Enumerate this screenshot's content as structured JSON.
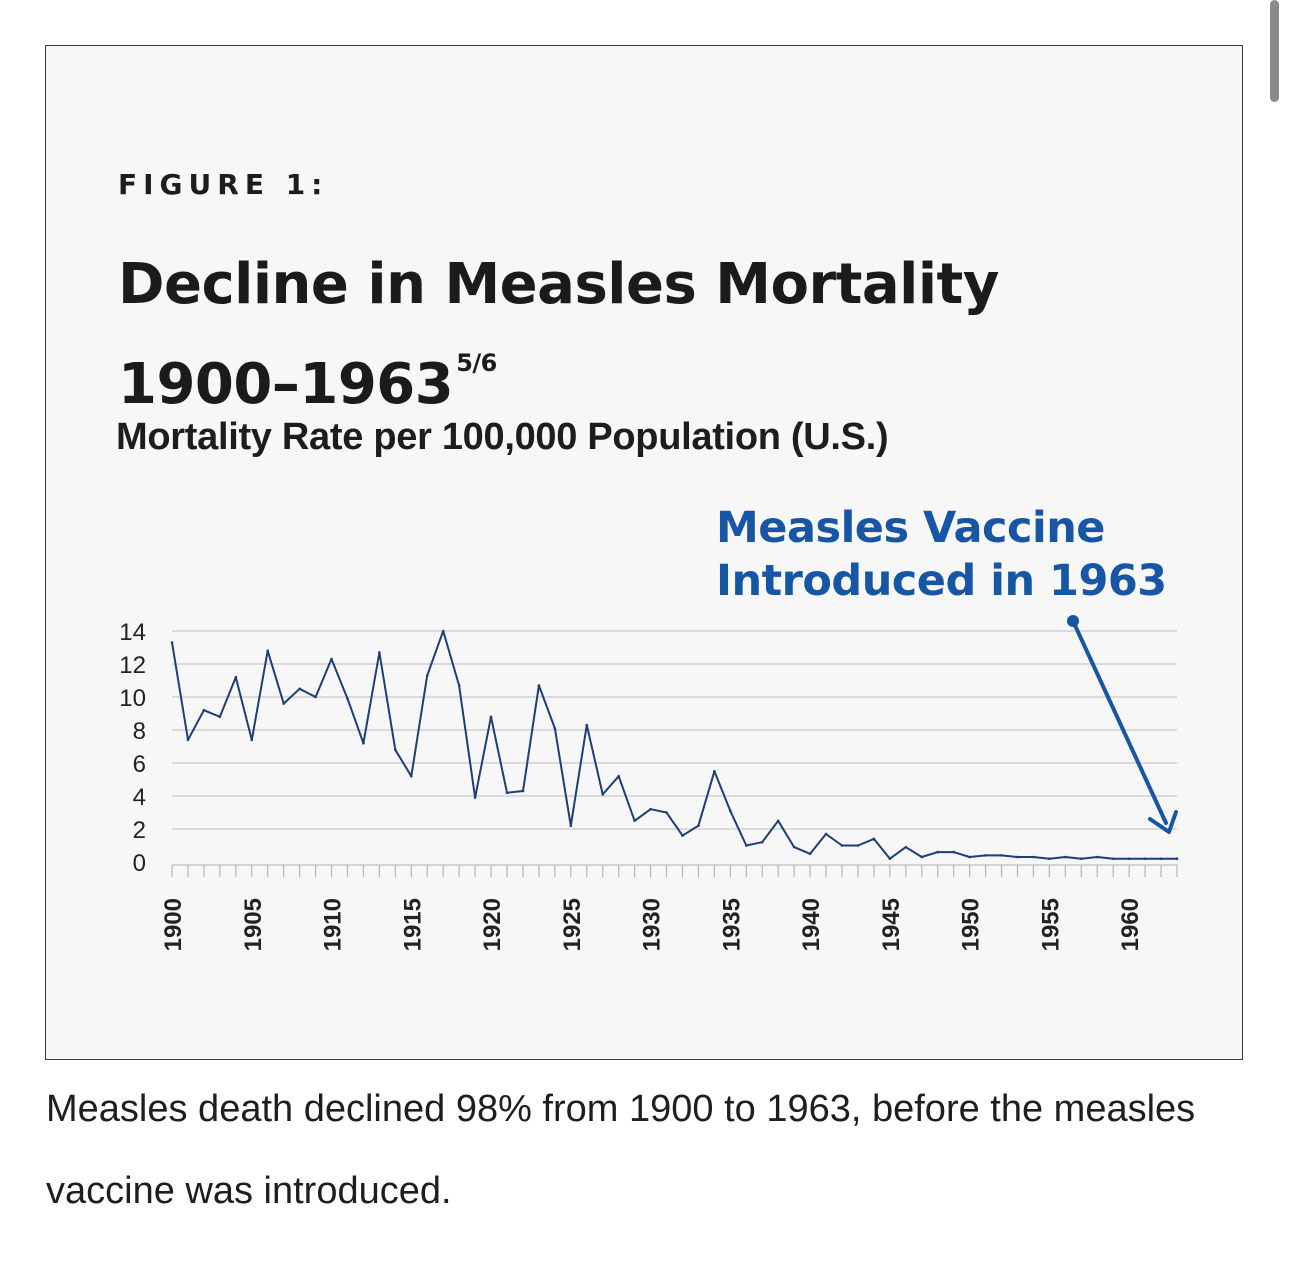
{
  "figure": {
    "label": "FIGURE 1:",
    "title_line1": "Decline in Measles Mortality",
    "title_line2": "1900–1963",
    "title_superscript": "5/6",
    "subtitle": "Mortality Rate per 100,000 Population (U.S.)",
    "annotation_line1": "Measles Vaccine",
    "annotation_line2": "Introduced in 1963"
  },
  "caption": "Measles death declined 98% from 1900 to 1963, before the measles vaccine was introduced.",
  "colors": {
    "series": "#1c3f78",
    "annotation": "#1656a4",
    "grid": "#c8c8c8",
    "background": "#f7f7f7"
  },
  "chart_data": {
    "type": "line",
    "title": "Decline in Measles Mortality 1900–1963",
    "subtitle": "Mortality Rate per 100,000 Population (U.S.)",
    "xlabel": "",
    "ylabel": "",
    "ylim": [
      0,
      14
    ],
    "yticks": [
      0,
      2,
      4,
      6,
      8,
      10,
      12,
      14
    ],
    "xlim": [
      1900,
      1963
    ],
    "xtick_labels": [
      "1900",
      "1905",
      "1910",
      "1915",
      "1920",
      "1925",
      "1930",
      "1935",
      "1940",
      "1945",
      "1950",
      "1955",
      "1960"
    ],
    "grid": true,
    "x": [
      1900,
      1901,
      1902,
      1903,
      1904,
      1905,
      1906,
      1907,
      1908,
      1909,
      1910,
      1911,
      1912,
      1913,
      1914,
      1915,
      1916,
      1917,
      1918,
      1919,
      1920,
      1921,
      1922,
      1923,
      1924,
      1925,
      1926,
      1927,
      1928,
      1929,
      1930,
      1931,
      1932,
      1933,
      1934,
      1935,
      1936,
      1937,
      1938,
      1939,
      1940,
      1941,
      1942,
      1943,
      1944,
      1945,
      1946,
      1947,
      1948,
      1949,
      1950,
      1951,
      1952,
      1953,
      1954,
      1955,
      1956,
      1957,
      1958,
      1959,
      1960,
      1961,
      1962,
      1963
    ],
    "series": [
      {
        "values": [
          13.3,
          7.4,
          9.2,
          8.8,
          11.2,
          7.4,
          12.8,
          9.6,
          10.5,
          10.0,
          12.3,
          9.9,
          7.2,
          12.7,
          6.8,
          5.2,
          11.3,
          14.0,
          10.7,
          3.9,
          8.8,
          4.2,
          4.3,
          10.7,
          8.1,
          2.2,
          8.3,
          4.1,
          5.2,
          2.5,
          3.2,
          3.0,
          1.6,
          2.2,
          5.5,
          3.1,
          1.0,
          1.2,
          2.5,
          0.9,
          0.5,
          1.7,
          1.0,
          1.0,
          1.4,
          0.2,
          0.9,
          0.3,
          0.6,
          0.6,
          0.3,
          0.4,
          0.4,
          0.3,
          0.3,
          0.2,
          0.3,
          0.2,
          0.3,
          0.2,
          0.2,
          0.2,
          0.2,
          0.2
        ]
      }
    ],
    "annotation": {
      "text": "Measles Vaccine Introduced in 1963",
      "points_to_year": 1963
    }
  }
}
